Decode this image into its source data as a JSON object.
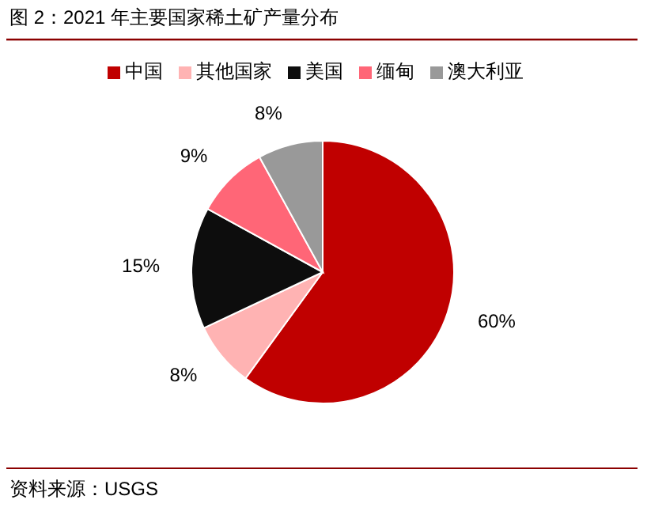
{
  "chart_data": {
    "type": "pie",
    "title": "图 2：2021 年主要国家稀土矿产量分布",
    "categories": [
      "中国",
      "其他国家",
      "美国",
      "缅甸",
      "澳大利亚"
    ],
    "values": [
      60,
      8,
      15,
      9,
      8
    ],
    "colors": [
      "#c00000",
      "#ffb3b3",
      "#0d0d0d",
      "#ff6677",
      "#999999"
    ],
    "value_labels": [
      "60%",
      "8%",
      "15%",
      "9%",
      "8%"
    ],
    "legend": "top",
    "annotations": [
      "资料来源：USGS"
    ]
  }
}
